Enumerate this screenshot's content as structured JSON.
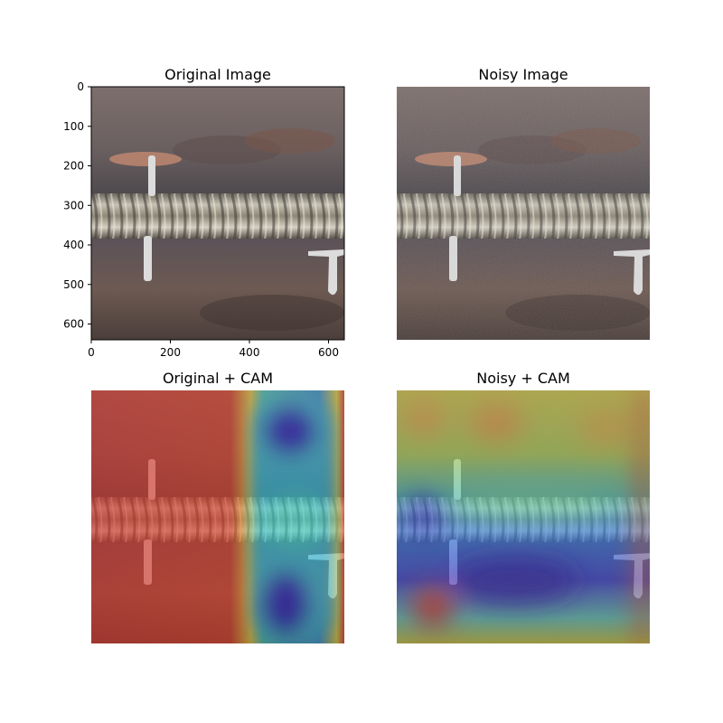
{
  "figure": {
    "panels": [
      {
        "title": "Original Image",
        "variant": "original",
        "cam": "none"
      },
      {
        "title": "Noisy Image",
        "variant": "noisy",
        "cam": "none"
      },
      {
        "title": "Original + CAM",
        "variant": "original",
        "cam": "right-low"
      },
      {
        "title": "Noisy + CAM",
        "variant": "noisy",
        "cam": "mixed"
      }
    ],
    "axes": {
      "x_ticks": [
        "0",
        "200",
        "400",
        "600"
      ],
      "y_ticks": [
        "0",
        "100",
        "200",
        "300",
        "400",
        "500",
        "600"
      ],
      "x_range": [
        0,
        640
      ],
      "y_range": [
        0,
        640
      ]
    }
  }
}
